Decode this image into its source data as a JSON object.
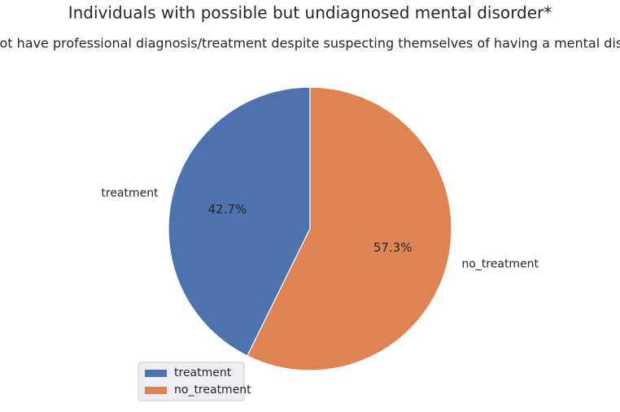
{
  "chart_data": {
    "type": "pie",
    "title": "Individuals with possible but undiagnosed mental disorder*",
    "subtitle": "*Do not have professional diagnosis/treatment despite suspecting themselves of having a mental disorder",
    "categories": [
      "treatment",
      "no_treatment"
    ],
    "values": [
      42.7,
      57.3
    ],
    "value_labels": [
      "42.7%",
      "57.3%"
    ],
    "colors": [
      "#4c72b0",
      "#dd8452"
    ],
    "legend": "lower left"
  }
}
